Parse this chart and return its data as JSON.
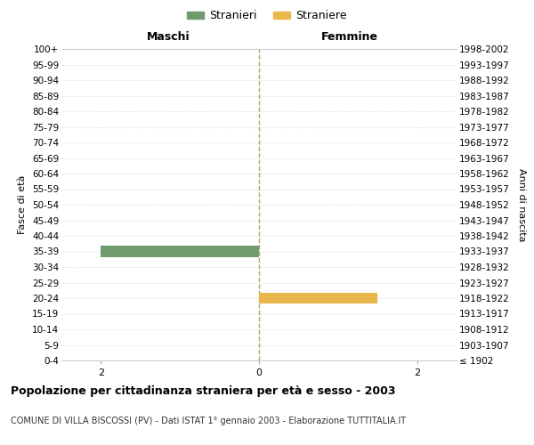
{
  "age_groups": [
    "100+",
    "95-99",
    "90-94",
    "85-89",
    "80-84",
    "75-79",
    "70-74",
    "65-69",
    "60-64",
    "55-59",
    "50-54",
    "45-49",
    "40-44",
    "35-39",
    "30-34",
    "25-29",
    "20-24",
    "15-19",
    "10-14",
    "5-9",
    "0-4"
  ],
  "birth_years": [
    "≤ 1902",
    "1903-1907",
    "1908-1912",
    "1913-1917",
    "1918-1922",
    "1923-1927",
    "1928-1932",
    "1933-1937",
    "1938-1942",
    "1943-1947",
    "1948-1952",
    "1953-1957",
    "1958-1962",
    "1963-1967",
    "1968-1972",
    "1973-1977",
    "1978-1982",
    "1983-1987",
    "1988-1992",
    "1993-1997",
    "1998-2002"
  ],
  "males": [
    0,
    0,
    0,
    0,
    0,
    0,
    0,
    0,
    0,
    0,
    0,
    0,
    0,
    2,
    0,
    0,
    0,
    0,
    0,
    0,
    0
  ],
  "females": [
    0,
    0,
    0,
    0,
    0,
    0,
    0,
    0,
    0,
    0,
    0,
    0,
    0,
    0,
    0,
    0,
    1.5,
    0,
    0,
    0,
    0
  ],
  "male_color": "#6e9c6e",
  "female_color": "#e8b84b",
  "xlim": 2.5,
  "center_line_color": "#a8a870",
  "grid_color": "#cccccc",
  "title_main": "Popolazione per cittadinanza straniera per età e sesso - 2003",
  "title_sub": "COMUNE DI VILLA BISCOSSI (PV) - Dati ISTAT 1° gennaio 2003 - Elaborazione TUTTITALIA.IT",
  "label_maschi": "Maschi",
  "label_femmine": "Femmine",
  "ylabel_left": "Fasce di età",
  "ylabel_right": "Anni di nascita",
  "legend_stranieri": "Stranieri",
  "legend_straniere": "Straniere",
  "background_color": "#ffffff",
  "bar_height": 0.72
}
